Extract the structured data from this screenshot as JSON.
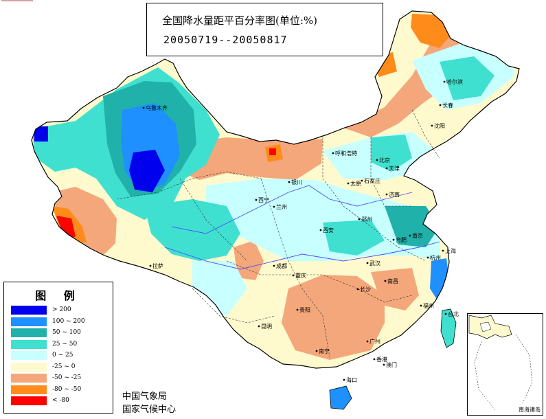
{
  "title": {
    "main": "全国降水量距平百分率图(单位:%)",
    "period": "20050719--20050817"
  },
  "legend": {
    "title": "图  例",
    "items": [
      {
        "label": "> 200",
        "color": "#0000ee"
      },
      {
        "label": "100 ~ 200",
        "color": "#1e90ff"
      },
      {
        "label": "50 ~ 100",
        "color": "#20b2aa"
      },
      {
        "label": "25 ~ 50",
        "color": "#40e0d0"
      },
      {
        "label": "0 ~ 25",
        "color": "#c8ffff"
      },
      {
        "label": "-25 ~ 0",
        "color": "#fffacd"
      },
      {
        "label": "-50 ~ -25",
        "color": "#f4a77a"
      },
      {
        "label": "-80 ~ -50",
        "color": "#ff8c1a"
      },
      {
        "label": "< -80",
        "color": "#ff0000"
      }
    ]
  },
  "agency": {
    "line1": "中国气象局",
    "line2": "国家气候中心"
  },
  "inset": {
    "label": "南海诸岛"
  },
  "cities": [
    {
      "name": "乌鲁木齐"
    },
    {
      "name": "哈尔滨"
    },
    {
      "name": "长春"
    },
    {
      "name": "沈阳"
    },
    {
      "name": "呼和浩特"
    },
    {
      "name": "北京"
    },
    {
      "name": "天津"
    },
    {
      "name": "太原"
    },
    {
      "name": "石家庄"
    },
    {
      "name": "济南"
    },
    {
      "name": "银川"
    },
    {
      "name": "西宁"
    },
    {
      "name": "兰州"
    },
    {
      "name": "郑州"
    },
    {
      "name": "西安"
    },
    {
      "name": "合肥"
    },
    {
      "name": "南京"
    },
    {
      "name": "上海"
    },
    {
      "name": "拉萨"
    },
    {
      "name": "成都"
    },
    {
      "name": "重庆"
    },
    {
      "name": "武汉"
    },
    {
      "name": "杭州"
    },
    {
      "name": "长沙"
    },
    {
      "name": "南昌"
    },
    {
      "name": "福州"
    },
    {
      "name": "贵阳"
    },
    {
      "name": "昆明"
    },
    {
      "name": "南宁"
    },
    {
      "name": "广州"
    },
    {
      "name": "台北"
    },
    {
      "name": "香港"
    },
    {
      "name": "澳门"
    },
    {
      "name": "海口"
    }
  ]
}
